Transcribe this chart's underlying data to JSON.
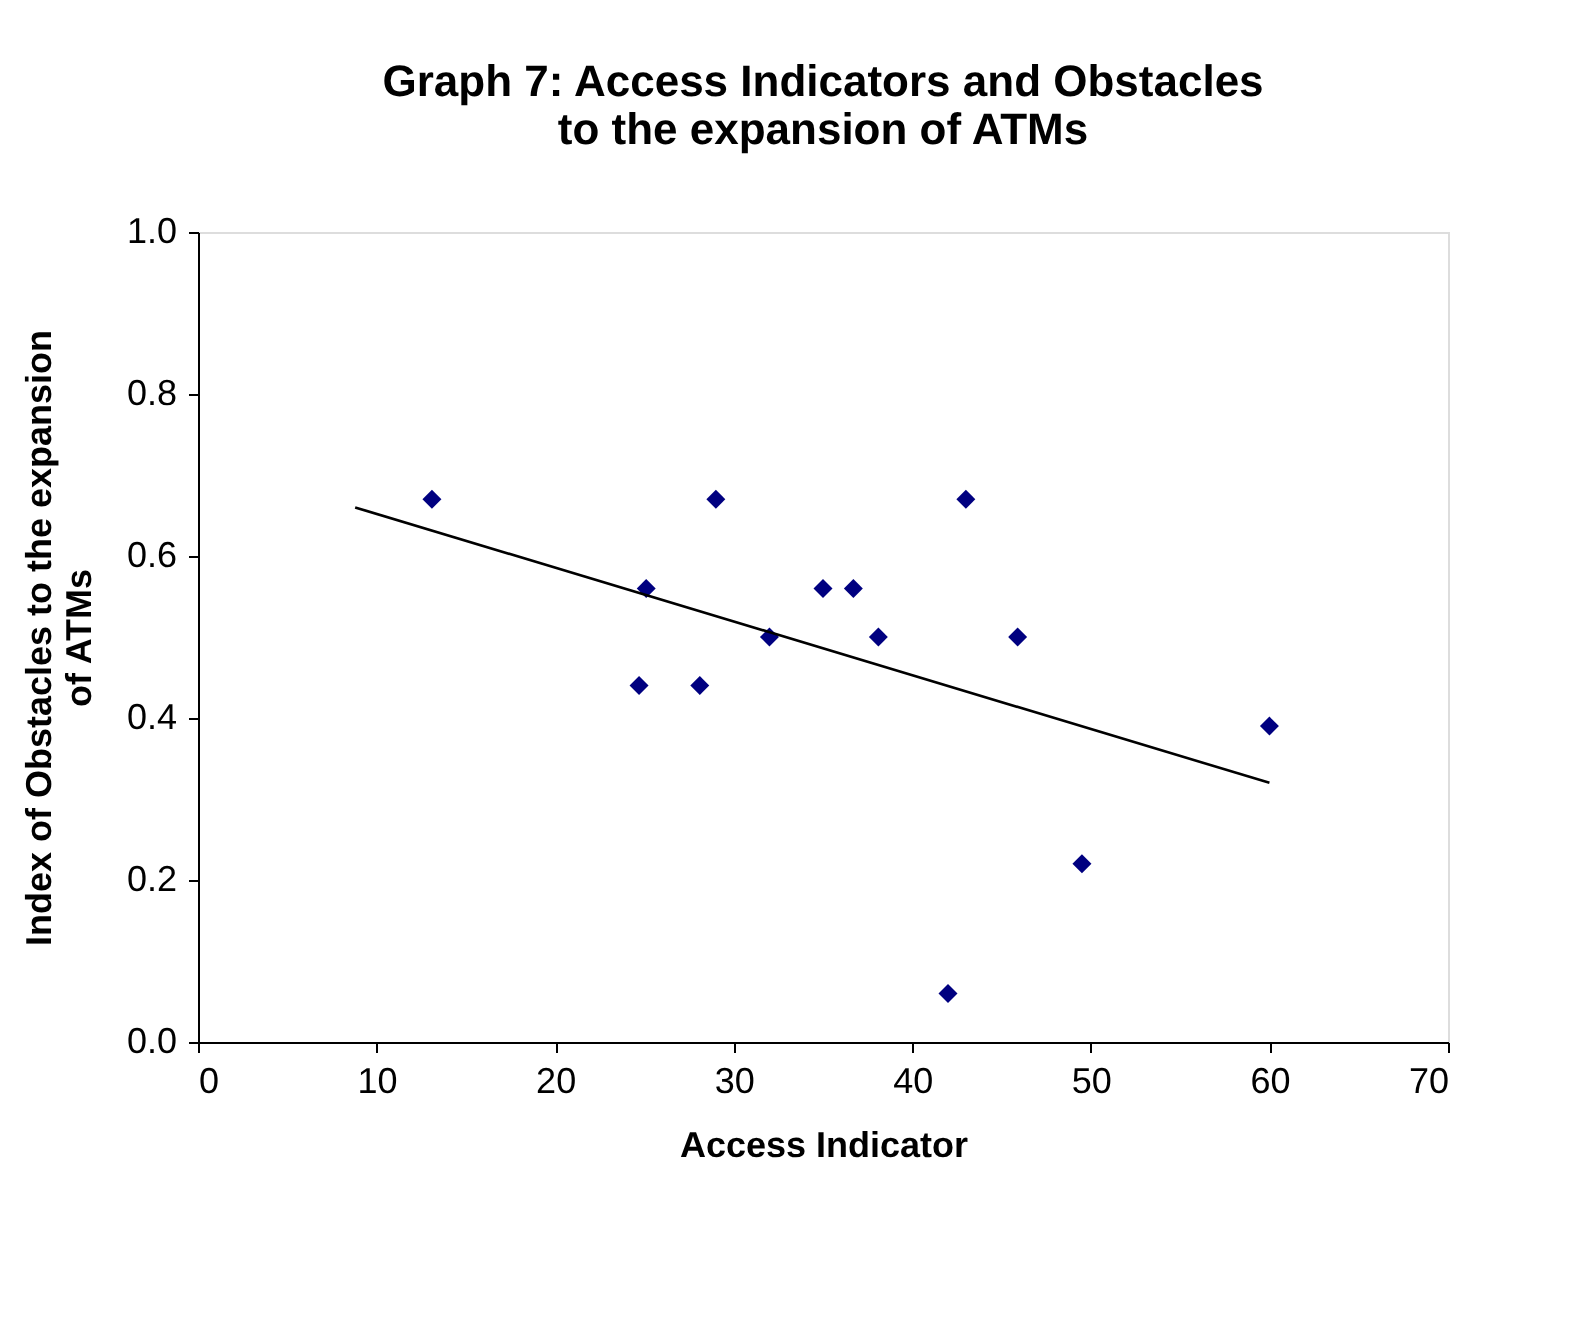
{
  "chart_data": {
    "type": "scatter",
    "title": "Graph 7: Access Indicators and Obstacles to the expansion of ATMs",
    "xlabel": "Access Indicator",
    "ylabel": "Index of Obstacles to the expansion of ATMs",
    "x": [
      13.1,
      24.7,
      25.1,
      28.1,
      29.0,
      32.0,
      35.0,
      36.7,
      38.1,
      42.0,
      43.0,
      45.9,
      49.5,
      60.0
    ],
    "series": [
      {
        "color": "#000080",
        "marker": "diamond",
        "values": [
          0.67,
          0.44,
          0.56,
          0.44,
          0.67,
          0.5,
          0.56,
          0.56,
          0.5,
          0.06,
          0.67,
          0.5,
          0.22,
          0.39
        ]
      },
      {
        "type": "line",
        "line_style": "solid",
        "color": "#000000",
        "x": [
          8.8,
          60.0
        ],
        "values": [
          0.66,
          0.32
        ]
      }
    ],
    "xlim": [
      0,
      70
    ],
    "xticks": [
      0,
      10,
      20,
      30,
      40,
      50,
      60,
      70
    ],
    "ylim": [
      0,
      1
    ],
    "yticks": [
      {
        "value": 0,
        "label": "0.0"
      },
      0.2,
      0.4,
      0.6,
      0.8,
      {
        "value": 1,
        "label": "1.0"
      }
    ],
    "grid": false
  }
}
